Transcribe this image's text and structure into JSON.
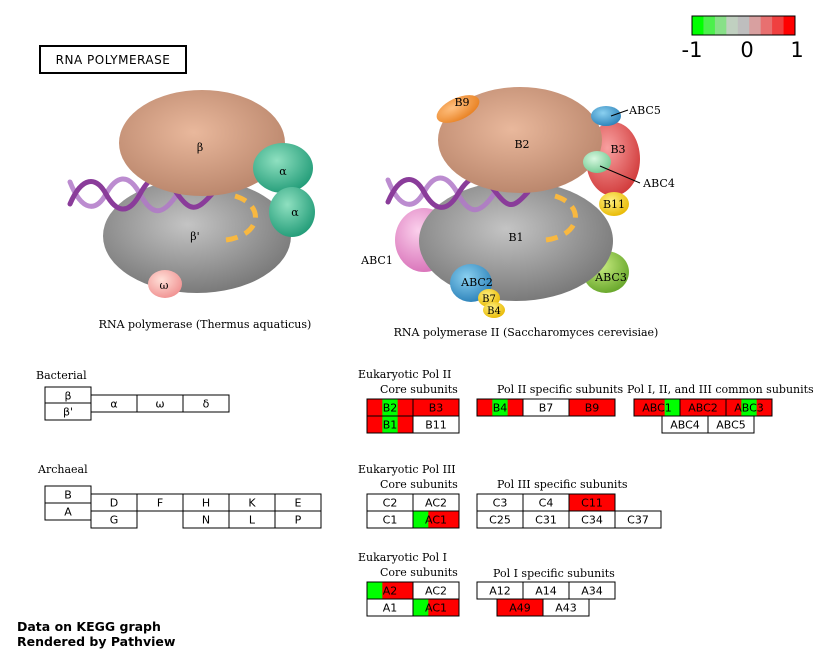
{
  "title": "RNA POLYMERASE",
  "legend": {
    "min_label": "-1",
    "mid_label": "0",
    "max_label": "1",
    "colors": [
      "#00ff00",
      "#4cf04c",
      "#88e088",
      "#c0d0c0",
      "#bebebe",
      "#d8a0a0",
      "#e87070",
      "#f04040",
      "#ff0000"
    ]
  },
  "footer": {
    "line1": "Data on KEGG graph",
    "line2": "Rendered by Pathview"
  },
  "illustrations": {
    "thermus_caption": "RNA polymerase (Thermus aquaticus)",
    "yeast_caption": "RNA polymerase II (Saccharomyces cerevisiae)",
    "thermus_labels": {
      "beta": "β",
      "beta_prime": "β'",
      "alpha1": "α",
      "alpha2": "α",
      "omega": "ω"
    },
    "yeast_labels": {
      "b9": "B9",
      "abc5": "ABC5",
      "b2": "B2",
      "b3": "B3",
      "abc4": "ABC4",
      "b11": "B11",
      "abc1": "ABC1",
      "b1": "B1",
      "abc2": "ABC2",
      "abc3": "ABC3",
      "b7": "B7",
      "b4": "B4"
    }
  },
  "groups": {
    "bacterial": "Bacterial",
    "archaeal": "Archaeal",
    "pol2": {
      "title": "Eukaryotic Pol II",
      "core": "Core subunits",
      "specific": "Pol II specific subunits",
      "common": "Pol I, II, and III common subunits"
    },
    "pol3": {
      "title": "Eukaryotic Pol III",
      "core": "Core subunits",
      "specific": "Pol III specific subunits"
    },
    "pol1": {
      "title": "Eukaryotic Pol I",
      "core": "Core subunits",
      "specific": "Pol I specific subunits"
    }
  },
  "colors": {
    "red": "#ff0000",
    "green": "#00ff00",
    "white": "#ffffff"
  },
  "genes": {
    "bacterial": [
      {
        "label": "β",
        "fill": "white"
      },
      {
        "label": "β'",
        "fill": "white"
      },
      {
        "label": "α",
        "fill": "white"
      },
      {
        "label": "ω",
        "fill": "white"
      },
      {
        "label": "δ",
        "fill": "white"
      }
    ],
    "archaeal": [
      {
        "label": "B",
        "fill": "white"
      },
      {
        "label": "A",
        "fill": "white"
      },
      {
        "label": "D",
        "fill": "white"
      },
      {
        "label": "F",
        "fill": "white"
      },
      {
        "label": "H",
        "fill": "white"
      },
      {
        "label": "K",
        "fill": "white"
      },
      {
        "label": "E",
        "fill": "white"
      },
      {
        "label": "G",
        "fill": "white"
      },
      {
        "label": "N",
        "fill": "white"
      },
      {
        "label": "L",
        "fill": "white"
      },
      {
        "label": "P",
        "fill": "white"
      }
    ],
    "pol2_core": [
      {
        "label": "B2",
        "fill": [
          "red",
          "green",
          "red"
        ]
      },
      {
        "label": "B3",
        "fill": "red"
      },
      {
        "label": "B1",
        "fill": [
          "red",
          "green",
          "red"
        ]
      },
      {
        "label": "B11",
        "fill": "white"
      }
    ],
    "pol2_specific": [
      {
        "label": "B4",
        "fill": [
          "red",
          "green",
          "red"
        ]
      },
      {
        "label": "B7",
        "fill": "white"
      },
      {
        "label": "B9",
        "fill": "red"
      }
    ],
    "pol2_common": [
      {
        "label": "ABC1",
        "fill": [
          "red",
          "red",
          "green"
        ]
      },
      {
        "label": "ABC2",
        "fill": "red"
      },
      {
        "label": "ABC3",
        "fill": [
          "red",
          "green",
          "red"
        ]
      },
      {
        "label": "ABC4",
        "fill": "white"
      },
      {
        "label": "ABC5",
        "fill": "white"
      }
    ],
    "pol3_core": [
      {
        "label": "C2",
        "fill": "white"
      },
      {
        "label": "AC2",
        "fill": "white"
      },
      {
        "label": "C1",
        "fill": "white"
      },
      {
        "label": "AC1",
        "fill": [
          "green",
          "red",
          "red"
        ]
      }
    ],
    "pol3_specific": [
      {
        "label": "C3",
        "fill": "white"
      },
      {
        "label": "C4",
        "fill": "white"
      },
      {
        "label": "C11",
        "fill": "red"
      },
      {
        "label": "C25",
        "fill": "white"
      },
      {
        "label": "C31",
        "fill": "white"
      },
      {
        "label": "C34",
        "fill": "white"
      },
      {
        "label": "C37",
        "fill": "white"
      }
    ],
    "pol1_core": [
      {
        "label": "A2",
        "fill": [
          "green",
          "red",
          "red"
        ]
      },
      {
        "label": "AC2",
        "fill": "white"
      },
      {
        "label": "A1",
        "fill": "white"
      },
      {
        "label": "AC1",
        "fill": [
          "green",
          "red",
          "red"
        ]
      }
    ],
    "pol1_specific": [
      {
        "label": "A12",
        "fill": "white"
      },
      {
        "label": "A14",
        "fill": "white"
      },
      {
        "label": "A34",
        "fill": "white"
      },
      {
        "label": "A49",
        "fill": "red"
      },
      {
        "label": "A43",
        "fill": "white"
      }
    ]
  }
}
